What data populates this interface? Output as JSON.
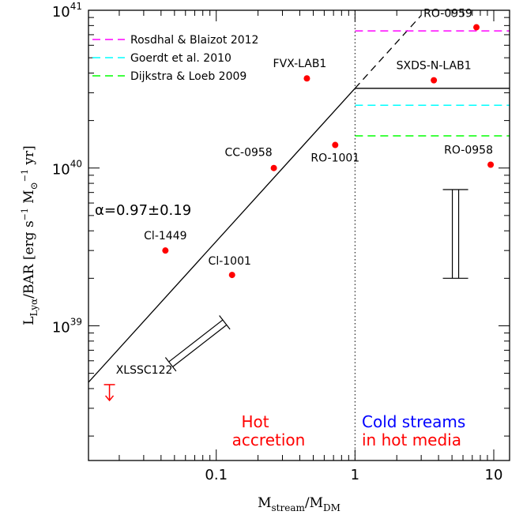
{
  "chart_data": {
    "type": "scatter",
    "x_scale": "log",
    "y_scale": "log",
    "xlim": [
      0.012,
      13
    ],
    "ylim": [
      1.4e+38,
      1e+41
    ],
    "xlabel": "Mstream/MDM",
    "ylabel": "LLyα/BAR [erg s−1 M⊙−1 yr]",
    "x_ticklabels": [
      "0.1",
      "1",
      "10"
    ],
    "y_ticklabels": [
      {
        "value": 1e+39,
        "base": "10",
        "exp": "39"
      },
      {
        "value": 1e+40,
        "base": "10",
        "exp": "40"
      },
      {
        "value": 1e+41,
        "base": "10",
        "exp": "41"
      }
    ],
    "points": [
      {
        "name": "RO-0959",
        "x": 7.5,
        "y": 7.8e+40
      },
      {
        "name": "FVX-LAB1",
        "x": 0.45,
        "y": 3.7e+40
      },
      {
        "name": "SXDS-N-LAB1",
        "x": 3.7,
        "y": 3.6e+40
      },
      {
        "name": "RO-1001",
        "x": 0.72,
        "y": 1.4e+40
      },
      {
        "name": "CC-0958",
        "x": 0.26,
        "y": 1e+40
      },
      {
        "name": "RO-0958",
        "x": 9.5,
        "y": 1.05e+40
      },
      {
        "name": "Cl-1449",
        "x": 0.043,
        "y": 3e+39
      },
      {
        "name": "Cl-1001",
        "x": 0.13,
        "y": 2.1e+39
      }
    ],
    "upper_limit": {
      "name": "XLSSC122",
      "x": 0.017,
      "y": 4e+38
    },
    "fit_line": {
      "label": "α=0.97±0.19",
      "slope": 0.97,
      "anchor_x": 1.0,
      "anchor_y": 3.2e+40,
      "solid_to_x": 1.0,
      "dashed_to_x": 3.0
    },
    "solid_horizontal": {
      "y": 3.2e+40,
      "x_from": 1.0,
      "x_to": 13
    },
    "model_lines": [
      {
        "name": "Rosdhal & Blaizot 2012",
        "color": "#ff00ff",
        "y": 7.4e+40
      },
      {
        "name": "Goerdt et al. 2010",
        "color": "#00ffff",
        "y": 2.5e+40
      },
      {
        "name": "Dijkstra & Loeb 2009",
        "color": "#00ff00",
        "y": 1.6e+40
      }
    ],
    "vertical_divider_x": 1.0,
    "error_bars": [
      {
        "name": "systematic-left",
        "x1": 0.047,
        "y1": 5.7e+38,
        "x2": 0.115,
        "y2": 1.05e+39
      },
      {
        "name": "systematic-right",
        "x": 5.3,
        "y_low": 2e+39,
        "y_high": 7.3e+39
      }
    ],
    "region_labels": {
      "hot": {
        "line1": "Hot",
        "line2": "accretion",
        "color": "#ff0000"
      },
      "cold": {
        "line1": "Cold streams",
        "line2": "in hot media",
        "line1_color": "#0000ff",
        "line2_color": "#ff0000"
      }
    },
    "point_color": "#ff0000"
  }
}
